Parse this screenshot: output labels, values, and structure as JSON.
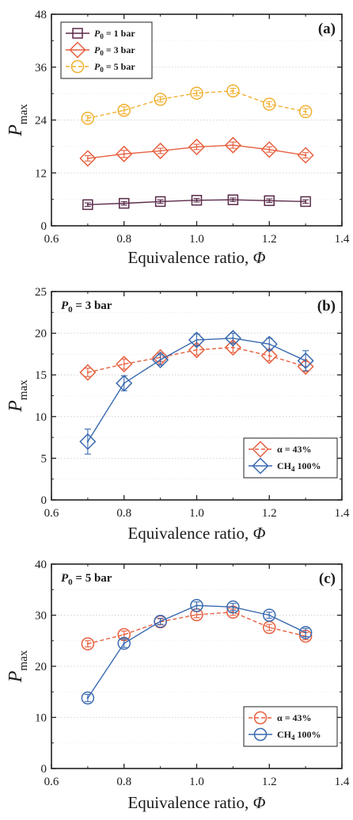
{
  "figure": {
    "panels_count": 3
  },
  "chart_data": [
    {
      "type": "line",
      "panel_label": "(a)",
      "condition": "",
      "xlabel": "Equivalence ratio, Φ",
      "ylabel": "P",
      "ylabel_sub": "max",
      "xlim": [
        0.6,
        1.4
      ],
      "ylim": [
        0,
        48
      ],
      "xticks": [
        0.6,
        0.8,
        1.0,
        1.2,
        1.4
      ],
      "xtick_labels": [
        "0.6",
        "0.8",
        "1.0",
        "1.2",
        "1.4"
      ],
      "yticks": [
        0,
        12,
        24,
        36,
        48
      ],
      "ytick_labels": [
        "0",
        "12",
        "24",
        "36",
        "48"
      ],
      "grid": true,
      "legend_position": "top-left",
      "x": [
        0.7,
        0.8,
        0.9,
        1.0,
        1.1,
        1.2,
        1.3
      ],
      "series": [
        {
          "name": "P0 = 1 bar",
          "legend_main": "P",
          "legend_sub": "0",
          "legend_rest": " = 1 bar",
          "marker": "square",
          "color": "#5a2a4a",
          "dashed": false,
          "values": [
            4.8,
            5.1,
            5.5,
            5.8,
            5.9,
            5.7,
            5.5
          ],
          "err": [
            0.4,
            0.4,
            0.4,
            0.4,
            0.4,
            0.4,
            0.4
          ]
        },
        {
          "name": "P0 = 3 bar",
          "legend_main": "P",
          "legend_sub": "0",
          "legend_rest": " = 3 bar",
          "marker": "diamond",
          "color": "#e66040",
          "dashed": false,
          "values": [
            15.3,
            16.3,
            17.0,
            17.9,
            18.3,
            17.3,
            16.0
          ],
          "err": [
            0.6,
            0.8,
            0.6,
            0.6,
            0.7,
            0.6,
            0.6
          ]
        },
        {
          "name": "P0 = 5 bar",
          "legend_main": "P",
          "legend_sub": "0",
          "legend_rest": " = 5 bar",
          "marker": "circle",
          "color": "#f0b030",
          "dashed": true,
          "values": [
            24.4,
            26.2,
            28.7,
            30.1,
            30.6,
            27.6,
            25.9
          ],
          "err": [
            0.6,
            0.8,
            0.6,
            0.6,
            0.6,
            0.6,
            0.7
          ]
        }
      ]
    },
    {
      "type": "line",
      "panel_label": "(b)",
      "condition": "P0 = 3 bar",
      "condition_main": "P",
      "condition_sub": "0",
      "condition_rest": " = 3 bar",
      "xlabel": "Equivalence ratio, Φ",
      "ylabel": "P",
      "ylabel_sub": "max",
      "xlim": [
        0.6,
        1.4
      ],
      "ylim": [
        0,
        25
      ],
      "xticks": [
        0.6,
        0.8,
        1.0,
        1.2,
        1.4
      ],
      "xtick_labels": [
        "0.6",
        "0.8",
        "1.0",
        "1.2",
        "1.4"
      ],
      "yticks": [
        0,
        5,
        10,
        15,
        20,
        25
      ],
      "ytick_labels": [
        "0",
        "5",
        "10",
        "15",
        "20",
        "25"
      ],
      "grid": true,
      "legend_position": "bottom-right",
      "x": [
        0.7,
        0.8,
        0.9,
        1.0,
        1.1,
        1.2,
        1.3
      ],
      "series": [
        {
          "name": "α = 43%",
          "legend_main": "α = 43%",
          "legend_sub": "",
          "legend_rest": "",
          "marker": "diamond",
          "color": "#e66040",
          "dashed": true,
          "values": [
            15.3,
            16.3,
            17.1,
            18.0,
            18.3,
            17.3,
            16.0
          ],
          "err": [
            0.5,
            0.6,
            0.5,
            0.6,
            0.6,
            0.6,
            0.6
          ]
        },
        {
          "name": "CH4 100%",
          "legend_main": "CH",
          "legend_sub": "4",
          "legend_rest": " 100%",
          "marker": "diamond",
          "color": "#3a6ab0",
          "dashed": false,
          "values": [
            7.0,
            14.0,
            16.8,
            19.2,
            19.4,
            18.7,
            16.7
          ],
          "err": [
            1.5,
            0.9,
            0.6,
            0.7,
            0.6,
            0.7,
            1.2
          ]
        }
      ]
    },
    {
      "type": "line",
      "panel_label": "(c)",
      "condition": "P0 = 5 bar",
      "condition_main": "P",
      "condition_sub": "0",
      "condition_rest": " = 5 bar",
      "xlabel": "Equivalence ratio, Φ",
      "ylabel": "P",
      "ylabel_sub": "max",
      "xlim": [
        0.6,
        1.4
      ],
      "ylim": [
        0,
        40
      ],
      "xticks": [
        0.6,
        0.8,
        1.0,
        1.2,
        1.4
      ],
      "xtick_labels": [
        "0.6",
        "0.8",
        "1.0",
        "1.2",
        "1.4"
      ],
      "yticks": [
        0,
        10,
        20,
        30,
        40
      ],
      "ytick_labels": [
        "0",
        "10",
        "20",
        "30",
        "40"
      ],
      "grid": true,
      "legend_position": "bottom-right",
      "x": [
        0.7,
        0.8,
        0.9,
        1.0,
        1.1,
        1.2,
        1.3
      ],
      "series": [
        {
          "name": "α = 43%",
          "legend_main": "α = 43%",
          "legend_sub": "",
          "legend_rest": "",
          "marker": "circle",
          "color": "#e66040",
          "dashed": true,
          "values": [
            24.4,
            26.2,
            28.7,
            30.1,
            30.6,
            27.6,
            25.9
          ],
          "err": [
            0.6,
            0.7,
            0.6,
            0.6,
            0.6,
            0.6,
            0.7
          ]
        },
        {
          "name": "CH4 100%",
          "legend_main": "CH",
          "legend_sub": "4",
          "legend_rest": " 100%",
          "marker": "circle",
          "color": "#3a6ab0",
          "dashed": false,
          "values": [
            13.8,
            24.5,
            28.8,
            31.9,
            31.6,
            30.0,
            26.6
          ],
          "err": [
            0.7,
            0.8,
            0.6,
            0.7,
            0.7,
            0.6,
            0.8
          ]
        }
      ]
    }
  ]
}
